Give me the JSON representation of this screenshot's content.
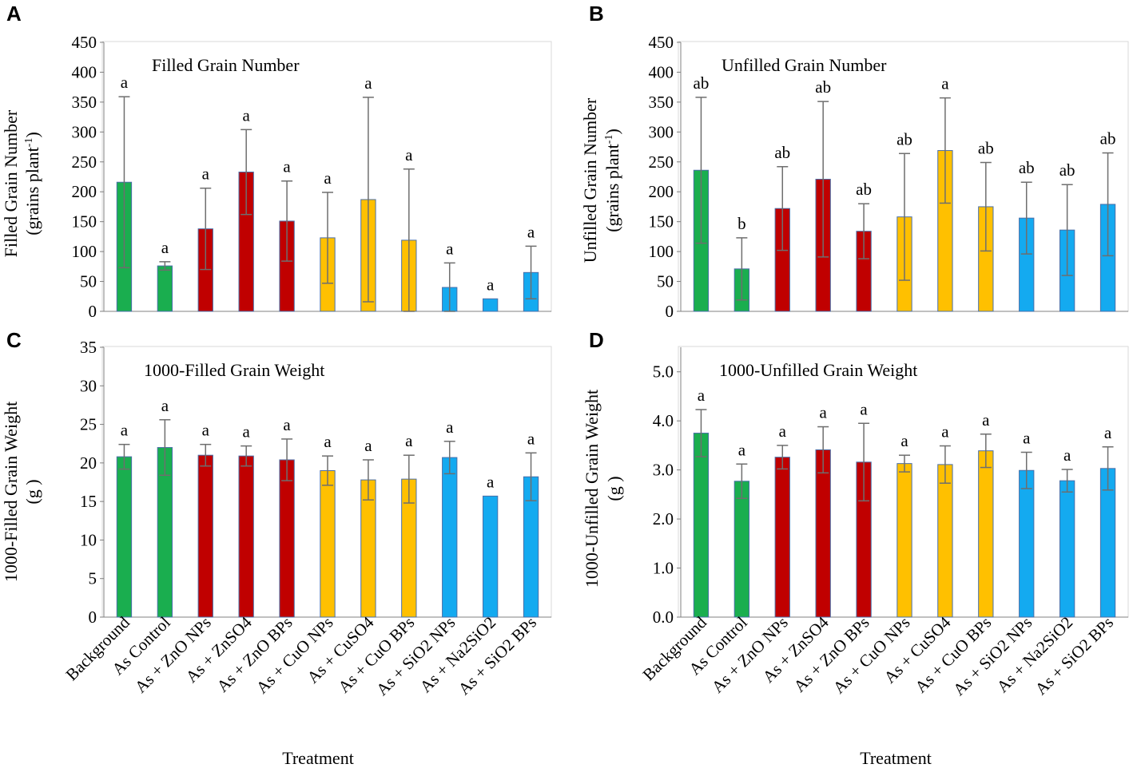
{
  "colors": {
    "Background": "#1aae4f",
    "As": "#1aae4f",
    "Zn": "#c00000",
    "Cu": "#ffc000",
    "Si": "#14aaf0",
    "bar_edge": "#4a6fa8",
    "error_bar": "#6e6e6e",
    "axis": "#808080",
    "frame": "#d9d9d9"
  },
  "categories": [
    "Background",
    "As Control",
    "As + ZnO NPs",
    "As + ZnSO4",
    "As + ZnO BPs",
    "As + CuO NPs",
    "As + CuSO4",
    "As + CuO BPs",
    "As + SiO2 NPs",
    "As + Na2SiO2",
    "As + SiO2 BPs"
  ],
  "category_groups": [
    "Background",
    "As",
    "Zn",
    "Zn",
    "Zn",
    "Cu",
    "Cu",
    "Cu",
    "Si",
    "Si",
    "Si"
  ],
  "xlabel_left": "Treatment",
  "xlabel_right": "Treatment",
  "chart_data": [
    {
      "id": "A",
      "type": "bar",
      "letter": "A",
      "title": "Filled Grain Number",
      "ylabel": "Filled Grain Number",
      "ylabel_unit": "(grains plant",
      "ylabel_sup": "-1",
      "ylabel_unit_close": ")",
      "ylim": [
        0,
        450
      ],
      "yticks": [
        "0",
        "50",
        "100",
        "150",
        "200",
        "250",
        "300",
        "350",
        "400",
        "450"
      ],
      "ytick_values": [
        0,
        50,
        100,
        150,
        200,
        250,
        300,
        350,
        400,
        450
      ],
      "values": [
        216,
        76,
        138,
        233,
        151,
        123,
        187,
        119,
        40,
        21,
        65
      ],
      "errors": [
        143,
        7,
        68,
        71,
        67,
        76,
        171,
        119,
        41,
        0,
        44
      ],
      "letters": [
        "a",
        "a",
        "a",
        "a",
        "a",
        "a",
        "a",
        "a",
        "a",
        "a",
        "a"
      ]
    },
    {
      "id": "B",
      "type": "bar",
      "letter": "B",
      "title": "Unfilled Grain Number",
      "ylabel": "Unfilled Grain Number",
      "ylabel_unit": "(grains plant",
      "ylabel_sup": "-1",
      "ylabel_unit_close": ")",
      "ylim": [
        0,
        450
      ],
      "yticks": [
        "0",
        "50",
        "100",
        "150",
        "200",
        "250",
        "300",
        "350",
        "400",
        "450"
      ],
      "ytick_values": [
        0,
        50,
        100,
        150,
        200,
        250,
        300,
        350,
        400,
        450
      ],
      "values": [
        236,
        71,
        172,
        221,
        134,
        158,
        269,
        175,
        156,
        136,
        179
      ],
      "errors": [
        122,
        52,
        70,
        130,
        46,
        106,
        88,
        74,
        60,
        76,
        86
      ],
      "letters": [
        "ab",
        "b",
        "ab",
        "ab",
        "ab",
        "ab",
        "a",
        "ab",
        "ab",
        "ab",
        "ab"
      ]
    },
    {
      "id": "C",
      "type": "bar",
      "letter": "C",
      "title": "1000-Filled Grain Weight",
      "ylabel": "1000-Filled Grain Weight",
      "ylabel_unit": "(g )",
      "ylim": [
        0,
        35
      ],
      "yticks": [
        "0",
        "5",
        "10",
        "15",
        "20",
        "25",
        "30",
        "35"
      ],
      "ytick_values": [
        0,
        5,
        10,
        15,
        20,
        25,
        30,
        35
      ],
      "values": [
        20.8,
        22.0,
        21.0,
        20.9,
        20.4,
        19.0,
        17.8,
        17.9,
        20.7,
        15.7,
        18.2
      ],
      "errors": [
        1.6,
        3.6,
        1.4,
        1.3,
        2.7,
        1.9,
        2.6,
        3.1,
        2.1,
        0,
        3.1
      ],
      "letters": [
        "a",
        "a",
        "a",
        "a",
        "a",
        "a",
        "a",
        "a",
        "a",
        "a",
        "a"
      ]
    },
    {
      "id": "D",
      "type": "bar",
      "letter": "D",
      "title": "1000-Unfilled Grain Weight",
      "ylabel": "1000-Unfilled Grain Weight",
      "ylabel_unit": "(g )",
      "ylim": [
        0,
        5.5
      ],
      "yticks": [
        "0.0",
        "1.0",
        "2.0",
        "3.0",
        "4.0",
        "5.0"
      ],
      "ytick_values": [
        0,
        1,
        2,
        3,
        4,
        5
      ],
      "values": [
        3.75,
        2.77,
        3.26,
        3.41,
        3.16,
        3.13,
        3.11,
        3.39,
        2.99,
        2.78,
        3.03
      ],
      "errors": [
        0.48,
        0.35,
        0.24,
        0.47,
        0.79,
        0.17,
        0.38,
        0.34,
        0.37,
        0.23,
        0.44
      ],
      "letters": [
        "a",
        "a",
        "a",
        "a",
        "a",
        "a",
        "a",
        "a",
        "a",
        "a",
        "a"
      ]
    }
  ]
}
